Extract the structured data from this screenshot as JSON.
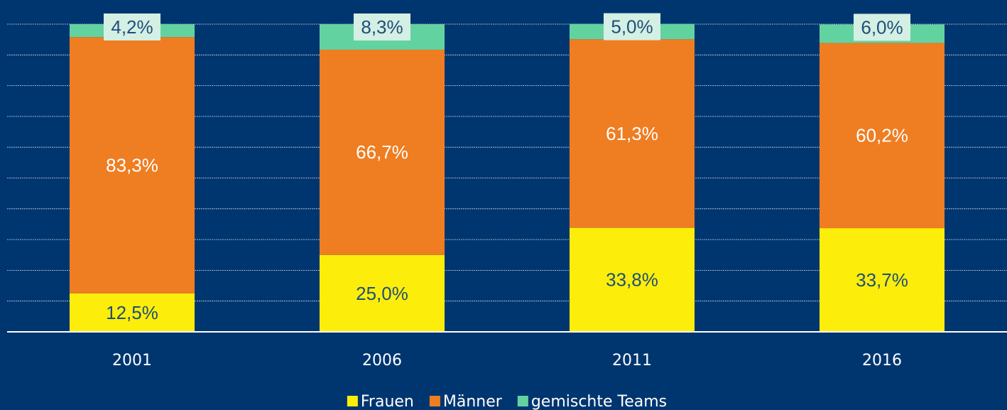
{
  "chart_data": {
    "type": "stacked_bar",
    "categories": [
      "2001",
      "2006",
      "2011",
      "2016"
    ],
    "series": [
      {
        "name": "Frauen",
        "color": "#fcee0a",
        "values": [
          12.5,
          25.0,
          33.8,
          33.7
        ],
        "value_labels": [
          "12,5%",
          "25,0%",
          "33,8%",
          "33,7%"
        ]
      },
      {
        "name": "Männer",
        "color": "#ef7d22",
        "values": [
          83.3,
          66.7,
          61.3,
          60.2
        ],
        "value_labels": [
          "83,3%",
          "66,7%",
          "61,3%",
          "60,2%"
        ]
      },
      {
        "name": "gemischte Teams",
        "color": "#62d3a0",
        "values": [
          4.2,
          8.3,
          5.0,
          6.0
        ],
        "value_labels": [
          "4,2%",
          "8,3%",
          "5,0%",
          "6,0%"
        ]
      }
    ],
    "ylim": [
      0,
      100
    ],
    "yticks": [
      0,
      10,
      20,
      30,
      40,
      50,
      60,
      70,
      80,
      90,
      100
    ],
    "grid": true,
    "legend": "bottom"
  }
}
